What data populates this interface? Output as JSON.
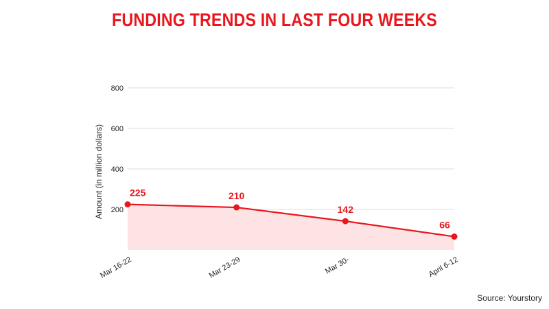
{
  "chart_data": {
    "type": "area",
    "title": "FUNDING TRENDS IN LAST FOUR WEEKS",
    "xlabel": "",
    "ylabel": "Amount (in million dollars)",
    "categories": [
      "Mar 16-22",
      "Mar 23-29",
      "Mar 30-",
      "April 6-12"
    ],
    "values": [
      225,
      210,
      142,
      66
    ],
    "ylim": [
      0,
      800
    ],
    "yticks": [
      "200",
      "400",
      "600",
      "800"
    ],
    "grid": true,
    "colors": {
      "line": "#e8171d",
      "fill": "#fde3e3",
      "grid": "#dddddd",
      "label": "#e8171d"
    }
  },
  "source": "Source: Yourstory"
}
